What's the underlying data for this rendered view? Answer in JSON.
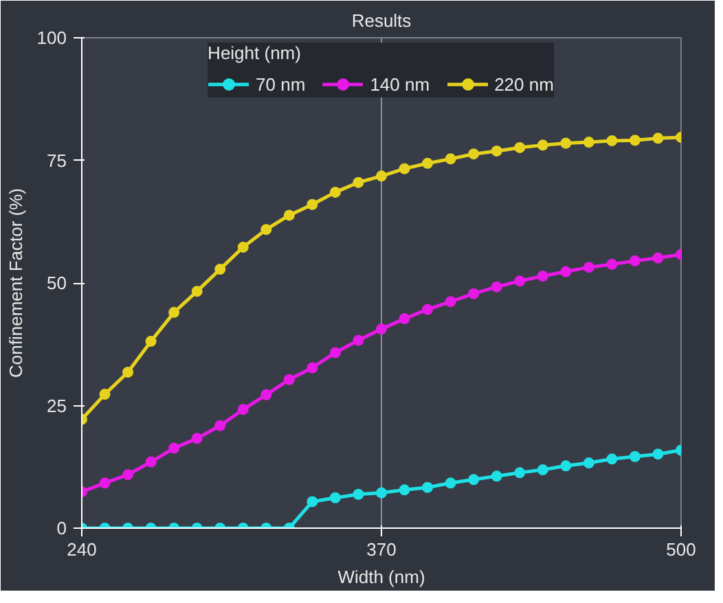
{
  "chart_data": {
    "type": "line",
    "title": "Results",
    "legend_title": "Height (nm)",
    "xlabel": "Width (nm)",
    "ylabel": "Confinement Factor (%)",
    "x": [
      240,
      250,
      260,
      270,
      280,
      290,
      300,
      310,
      320,
      330,
      340,
      350,
      360,
      370,
      380,
      390,
      400,
      410,
      420,
      430,
      440,
      450,
      460,
      470,
      480,
      490,
      500
    ],
    "series": [
      {
        "name": "70 nm",
        "color": "#1ee0e6",
        "values": [
          0,
          0,
          0,
          0,
          0,
          0,
          0,
          0,
          0,
          0,
          5.4,
          6.2,
          6.9,
          7.2,
          7.8,
          8.3,
          9.2,
          9.9,
          10.6,
          11.3,
          11.9,
          12.7,
          13.3,
          14.1,
          14.6,
          15.1,
          15.9
        ]
      },
      {
        "name": "140 nm",
        "color": "#e619e6",
        "values": [
          7.4,
          9.2,
          10.9,
          13.5,
          16.3,
          18.3,
          20.9,
          24.2,
          27.2,
          30.3,
          32.7,
          35.8,
          38.3,
          40.6,
          42.7,
          44.6,
          46.2,
          47.8,
          49.2,
          50.4,
          51.4,
          52.3,
          53.2,
          53.8,
          54.5,
          55.1,
          55.8
        ]
      },
      {
        "name": "220 nm",
        "color": "#e6d21e",
        "values": [
          22.2,
          27.3,
          31.8,
          38.1,
          44,
          48.3,
          52.8,
          57.3,
          60.9,
          63.8,
          66,
          68.5,
          70.5,
          71.8,
          73.3,
          74.4,
          75.3,
          76.3,
          76.9,
          77.6,
          78.1,
          78.5,
          78.7,
          79,
          79.1,
          79.5,
          79.7
        ]
      }
    ],
    "xlim": [
      240,
      500
    ],
    "xticks": [
      240,
      370,
      500
    ],
    "ylim": [
      0,
      100
    ],
    "yticks": [
      0,
      25,
      50,
      75,
      100
    ],
    "grid": "x",
    "legend": "top",
    "marker": "circle",
    "line_style": "solid"
  }
}
